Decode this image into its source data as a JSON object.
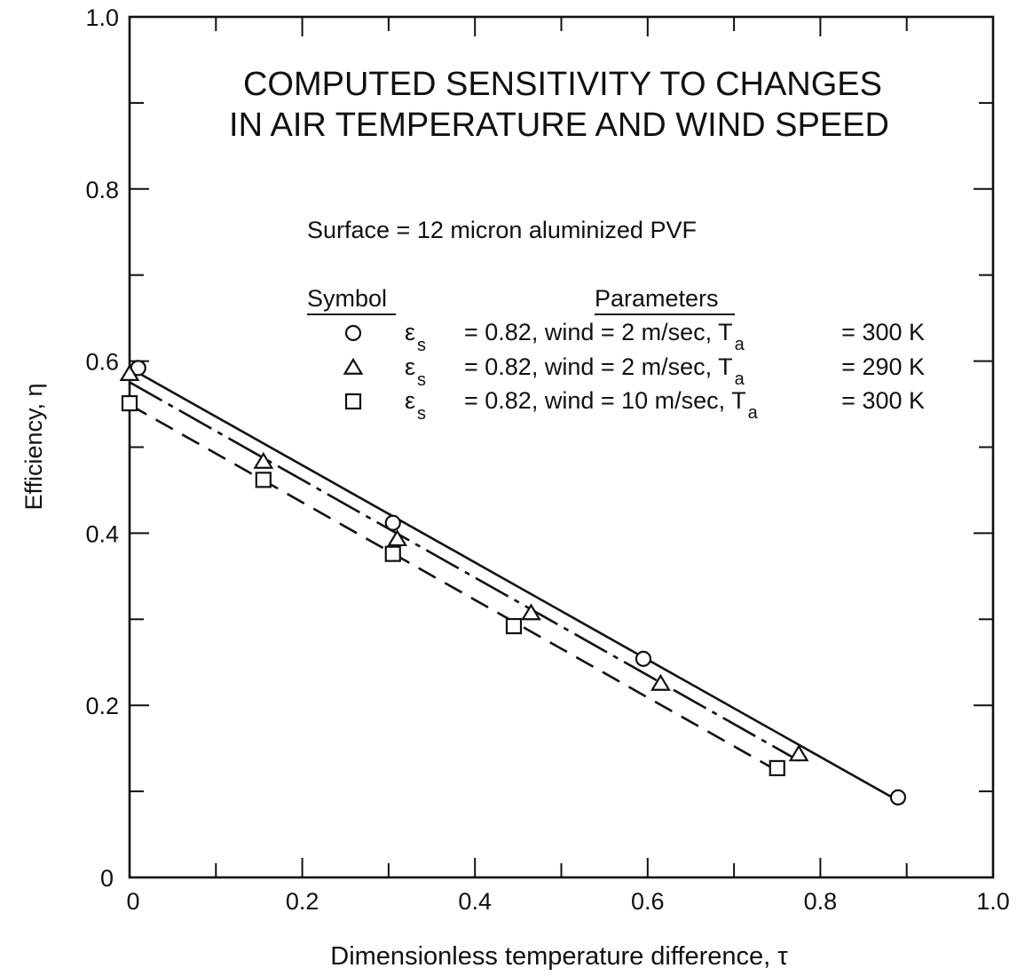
{
  "chart_data": {
    "type": "line",
    "title": [
      "COMPUTED SENSITIVITY TO CHANGES",
      "IN AIR TEMPERATURE AND WIND SPEED"
    ],
    "xlabel": "Dimensionless temperature difference, τ",
    "ylabel": "Efficiency, η",
    "xlim": [
      0,
      1.0
    ],
    "ylim": [
      0,
      1.0
    ],
    "x_ticks": [
      "0",
      "0.2",
      "0.4",
      "0.6",
      "0.8",
      "1.0"
    ],
    "y_ticks": [
      "0",
      "0.2",
      "0.4",
      "0.6",
      "0.8",
      "1.0"
    ],
    "grid": false,
    "surface_note": "Surface = 12 micron aluminized PVF",
    "legend": {
      "symbol_header": "Symbol",
      "parameters_header": "Parameters",
      "entries": [
        {
          "marker": "circle",
          "eps": "ε",
          "eps_sub": "s",
          "params": "= 0.82, wind = 2 m/sec, T",
          "t_sub": "a",
          "value": "= 300 K"
        },
        {
          "marker": "triangle",
          "eps": "ε",
          "eps_sub": "s",
          "params": "= 0.82, wind = 2 m/sec, T",
          "t_sub": "a",
          "value": "= 290 K"
        },
        {
          "marker": "square",
          "eps": "ε",
          "eps_sub": "s",
          "params": "= 0.82, wind = 10 m/sec, T",
          "t_sub": "a",
          "value": "= 300 K"
        }
      ]
    },
    "series": [
      {
        "marker": "circle",
        "line_style": "solid",
        "x": [
          0.01,
          0.305,
          0.595,
          0.89
        ],
        "y": [
          0.592,
          0.412,
          0.254,
          0.093
        ]
      },
      {
        "marker": "triangle",
        "line_style": "dashdot",
        "x": [
          0.0,
          0.155,
          0.31,
          0.465,
          0.615,
          0.775
        ],
        "y": [
          0.585,
          0.483,
          0.393,
          0.307,
          0.225,
          0.143
        ]
      },
      {
        "marker": "square",
        "line_style": "dashed",
        "x": [
          0.0,
          0.155,
          0.305,
          0.445,
          0.75
        ],
        "y": [
          0.551,
          0.462,
          0.376,
          0.292,
          0.127
        ]
      }
    ]
  }
}
